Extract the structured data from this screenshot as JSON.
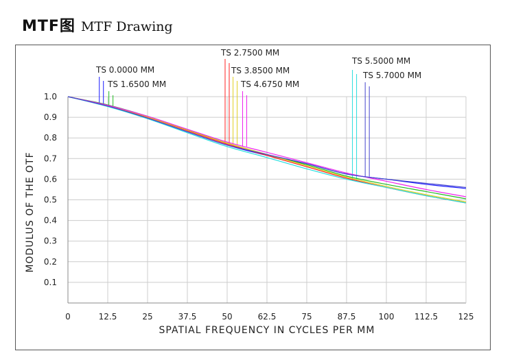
{
  "heading": {
    "cn": "MTF图",
    "en": "MTF Drawing"
  },
  "chart_data": {
    "type": "line",
    "xlabel": "SPATIAL FREQUENCY IN CYCLES PER MM",
    "ylabel": "MODULUS OF THE OTF",
    "xlim": [
      0,
      125
    ],
    "ylim": [
      0,
      1.0
    ],
    "x_ticks": [
      "0",
      "12.5",
      "25",
      "37.5",
      "50",
      "62.5",
      "75",
      "87.5",
      "100",
      "112.5",
      "125"
    ],
    "y_ticks": [
      "0.1",
      "0.2",
      "0.3",
      "0.4",
      "0.5",
      "0.6",
      "0.7",
      "0.8",
      "0.9",
      "1.0"
    ],
    "grid": true,
    "x": [
      0,
      12.5,
      25,
      37.5,
      50,
      62.5,
      75,
      87.5,
      100,
      112.5,
      125
    ],
    "series": [
      {
        "name": "TS 0.0000 MM",
        "color": "#1a1aff",
        "marker_x": 10.5,
        "values": [
          1.0,
          0.955,
          0.895,
          0.83,
          0.765,
          0.715,
          0.675,
          0.625,
          0.6,
          0.575,
          0.555
        ]
      },
      {
        "name": "TS 1.6500 MM",
        "color": "#22bb22",
        "marker_x": 13.5,
        "values": [
          1.0,
          0.96,
          0.905,
          0.84,
          0.775,
          0.72,
          0.67,
          0.615,
          0.575,
          0.54,
          0.505
        ]
      },
      {
        "name": "TS 2.7500 MM",
        "color": "#ff2222",
        "marker_x": 50.0,
        "values": [
          1.0,
          0.955,
          0.9,
          0.835,
          0.77,
          0.715,
          0.66,
          0.605,
          0.56,
          0.52,
          0.485
        ]
      },
      {
        "name": "TS 3.8500 MM",
        "color": "#e0d020",
        "marker_x": 52.5,
        "values": [
          1.0,
          0.957,
          0.902,
          0.838,
          0.775,
          0.72,
          0.665,
          0.61,
          0.565,
          0.525,
          0.49
        ]
      },
      {
        "name": "TS 4.6750 MM",
        "color": "#ee22ee",
        "marker_x": 55.5,
        "values": [
          1.0,
          0.958,
          0.905,
          0.842,
          0.78,
          0.73,
          0.68,
          0.63,
          0.59,
          0.55,
          0.515
        ]
      },
      {
        "name": "TS 5.5000 MM",
        "color": "#22dddd",
        "marker_x": 90.0,
        "values": [
          1.0,
          0.952,
          0.893,
          0.825,
          0.758,
          0.705,
          0.65,
          0.6,
          0.56,
          0.52,
          0.485
        ]
      },
      {
        "name": "TS 5.7000 MM",
        "color": "#4444cc",
        "marker_x": 94.0,
        "values": [
          1.0,
          0.954,
          0.896,
          0.83,
          0.765,
          0.72,
          0.675,
          0.625,
          0.6,
          0.58,
          0.56
        ]
      }
    ],
    "field_labels": [
      "TS 0.0000 MM",
      "TS 1.6500 MM",
      "TS 2.7500 MM",
      "TS 3.8500 MM",
      "TS 4.6750 MM",
      "TS 5.5000 MM",
      "TS 5.7000 MM"
    ]
  }
}
